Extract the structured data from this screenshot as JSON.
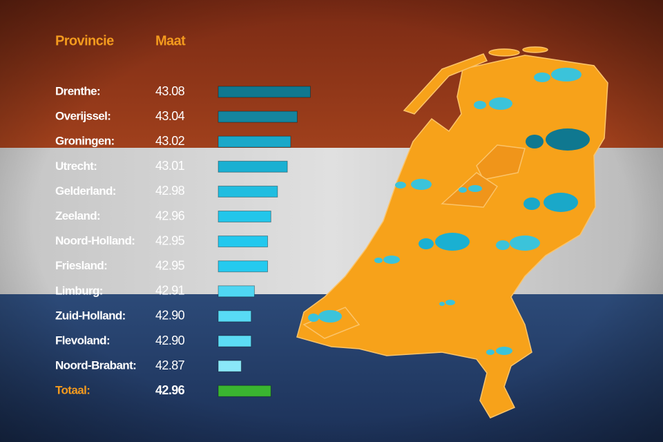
{
  "chart_data": {
    "type": "bar",
    "orientation": "horizontal",
    "headers": [
      "Provincie",
      "Maat"
    ],
    "categories": [
      "Drenthe:",
      "Overijssel:",
      "Groningen:",
      "Utrecht:",
      "Gelderland:",
      "Zeeland:",
      "Noord-Holland:",
      "Friesland:",
      "Limburg:",
      "Zuid-Holland:",
      "Flevoland:",
      "Noord-Brabant:"
    ],
    "values": [
      43.08,
      43.04,
      43.02,
      43.01,
      42.98,
      42.96,
      42.95,
      42.95,
      42.91,
      42.9,
      42.9,
      42.87
    ],
    "value_labels": [
      "43.08",
      "43.04",
      "43.02",
      "43.01",
      "42.98",
      "42.96",
      "42.95",
      "42.95",
      "42.91",
      "42.90",
      "42.90",
      "42.87"
    ],
    "colors": [
      "#0f7890",
      "#14859f",
      "#1aa8c9",
      "#1ab0d2",
      "#20bde0",
      "#22c6ea",
      "#22c8ee",
      "#25caef",
      "#4fd6f3",
      "#58dbf5",
      "#5cdcf5",
      "#8ae8f8"
    ],
    "total": {
      "label": "Totaal:",
      "value": 42.96,
      "value_label": "42.96",
      "color": "#3ab530"
    },
    "xlim": [
      42.8,
      43.1
    ]
  }
}
